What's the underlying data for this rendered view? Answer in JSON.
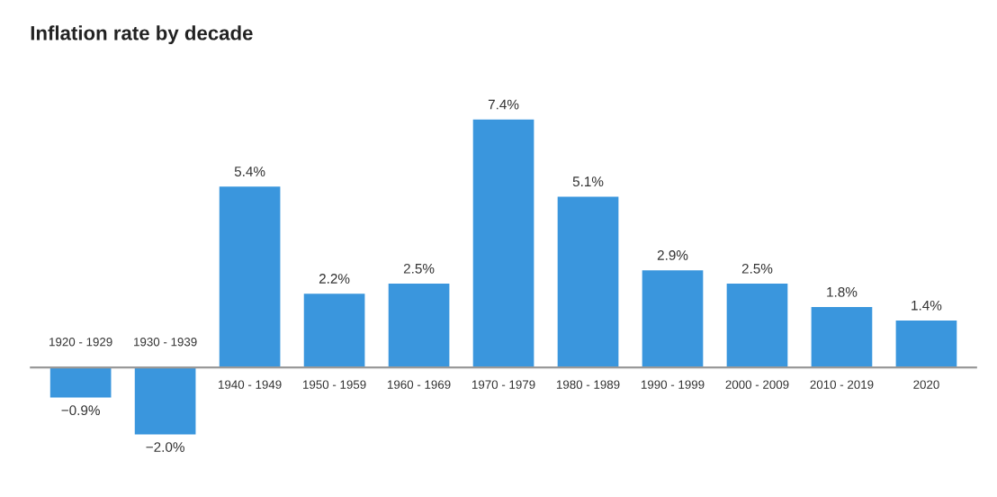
{
  "chart_data": {
    "type": "bar",
    "title": "Inflation rate by decade",
    "categories": [
      "1920 - 1929",
      "1930 - 1939",
      "1940 - 1949",
      "1950 - 1959",
      "1960 - 1969",
      "1970 - 1979",
      "1980 - 1989",
      "1990 - 1999",
      "2000 - 2009",
      "2010 - 2019",
      "2020"
    ],
    "values": [
      -0.9,
      -2.0,
      5.4,
      2.2,
      2.5,
      7.4,
      5.1,
      2.9,
      2.5,
      1.8,
      1.4
    ],
    "value_labels": [
      "−0.9%",
      "−2.0%",
      "5.4%",
      "2.2%",
      "2.5%",
      "7.4%",
      "5.1%",
      "2.9%",
      "2.5%",
      "1.8%",
      "1.4%"
    ],
    "color": "#3a96dd"
  }
}
